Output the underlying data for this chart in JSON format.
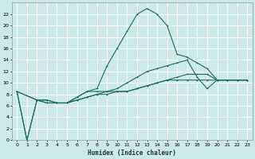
{
  "xlabel": "Humidex (Indice chaleur)",
  "bg_color": "#cce8e8",
  "grid_color": "#ffffff",
  "line_color": "#1a6e62",
  "xlim": [
    -0.5,
    23.5
  ],
  "ylim": [
    0,
    24
  ],
  "xticks": [
    0,
    1,
    2,
    3,
    4,
    5,
    6,
    7,
    8,
    9,
    10,
    11,
    12,
    13,
    14,
    15,
    16,
    17,
    18,
    19,
    20,
    21,
    22,
    23
  ],
  "yticks": [
    0,
    2,
    4,
    6,
    8,
    10,
    12,
    14,
    16,
    18,
    20,
    22
  ],
  "line1_x": [
    0,
    1,
    2,
    3,
    4,
    5,
    6,
    7,
    8,
    9,
    10,
    11,
    12,
    13,
    14,
    15,
    16,
    17,
    18,
    19,
    20,
    21,
    22,
    23
  ],
  "line1_y": [
    8.5,
    0,
    7,
    6.5,
    6.5,
    6.5,
    7.5,
    8.5,
    9,
    13,
    16,
    19,
    22,
    23,
    22,
    20,
    15,
    14.5,
    13.5,
    12.5,
    10.5,
    10.5,
    10.5,
    10.5
  ],
  "line2_x": [
    0,
    1,
    2,
    3,
    4,
    5,
    6,
    7,
    8,
    9,
    10,
    11,
    12,
    13,
    14,
    15,
    16,
    17,
    18,
    19,
    20,
    21,
    22,
    23
  ],
  "line2_y": [
    8.5,
    0,
    7,
    6.5,
    6.5,
    6.5,
    7.5,
    8.5,
    8.5,
    8.5,
    8.5,
    8.5,
    9,
    9.5,
    10,
    10.5,
    11,
    11.5,
    11.5,
    11.5,
    10.5,
    10.5,
    10.5,
    10.5
  ],
  "line3_x": [
    0,
    2,
    3,
    4,
    5,
    6,
    7,
    8,
    9,
    10,
    11,
    12,
    13,
    14,
    15,
    16,
    17,
    18,
    19,
    20,
    21,
    22,
    23
  ],
  "line3_y": [
    8.5,
    7,
    7,
    6.5,
    6.5,
    7,
    7.5,
    8,
    8,
    8.5,
    8.5,
    9,
    9.5,
    10,
    10.5,
    10.5,
    10.5,
    10.5,
    10.5,
    10.5,
    10.5,
    10.5,
    10.5
  ],
  "line4_x": [
    0,
    2,
    3,
    4,
    5,
    6,
    7,
    8,
    9,
    10,
    11,
    12,
    13,
    14,
    15,
    16,
    17,
    18,
    19,
    20,
    21,
    22,
    23
  ],
  "line4_y": [
    8.5,
    7,
    7,
    6.5,
    6.5,
    7,
    7.5,
    8,
    8.5,
    9,
    10,
    11,
    12,
    12.5,
    13,
    13.5,
    14,
    11,
    9,
    10.5,
    10.5,
    10.5,
    10.5
  ]
}
